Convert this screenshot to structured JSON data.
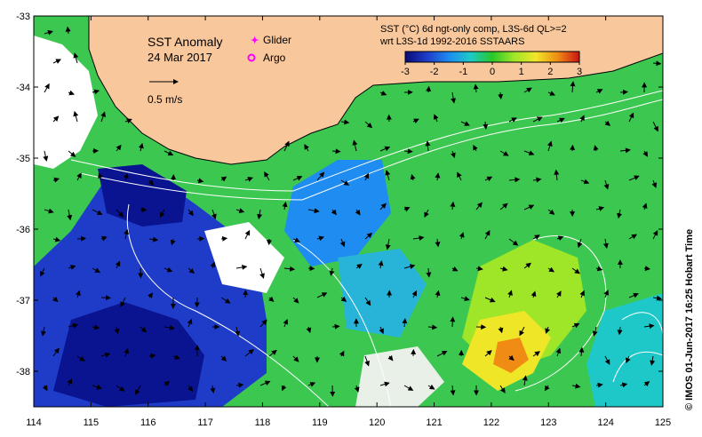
{
  "map": {
    "title": "SST Anomaly",
    "date": "24 Mar 2017",
    "scale_arrow_label": "0.5 m/s",
    "legend": {
      "glider_label": "Glider",
      "argo_label": "Argo",
      "glider_color": "#ff00ff",
      "argo_color": "#ff00ff"
    },
    "colorbar": {
      "title_line1": "SST (°C) 6d ngt-only comp, L3S-6d QL>=2",
      "title_line2": "wrt L3S-1d 1992-2016 SSTAARS",
      "min": -3,
      "max": 3,
      "tick_labels": [
        "-3",
        "-2",
        "-1",
        "0",
        "1",
        "2",
        "3"
      ],
      "colors": [
        "#0a0a78",
        "#1e3cc8",
        "#1e8cf0",
        "#1ec8c8",
        "#28c828",
        "#a0e628",
        "#f0e628",
        "#f08c14",
        "#c81414"
      ]
    },
    "axes": {
      "lon_min": 114,
      "lon_max": 125,
      "lat_min": -38.5,
      "lat_max": -33,
      "x_tick_labels": [
        "114",
        "115",
        "116",
        "117",
        "118",
        "119",
        "120",
        "121",
        "122",
        "123",
        "124",
        "125"
      ],
      "y_tick_labels": [
        "-33",
        "-34",
        "-35",
        "-36",
        "-37",
        "-38"
      ]
    },
    "colors": {
      "land": "#f8c89c",
      "base_sea": "#3cc850",
      "contour": "#ffffff"
    },
    "side_credit": "© IMOS 01-Jun-2017 16:25 Hobart Time"
  }
}
